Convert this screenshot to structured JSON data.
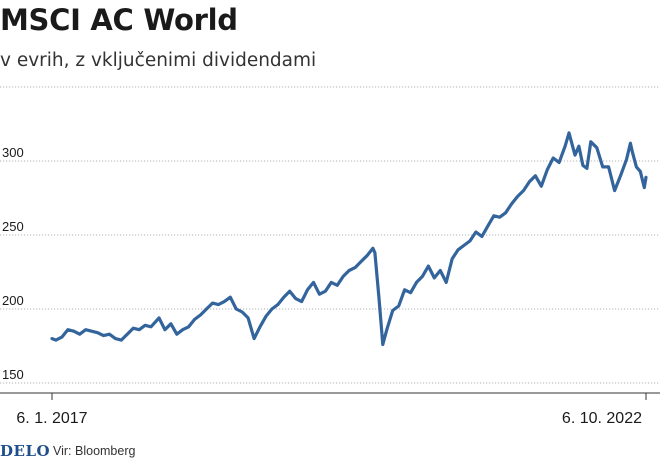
{
  "header": {
    "title": "MSCI AC World",
    "subtitle": "v evrih, z vključenimi dividendami"
  },
  "footer": {
    "logo": "DELO",
    "source": "Vir: Bloomberg"
  },
  "colors": {
    "line": "#33659c",
    "grid": "#9a9a9a",
    "text": "#1a1a1a",
    "logo": "#1f4e8c"
  },
  "chart_data": {
    "type": "line",
    "title": "MSCI AC World",
    "subtitle": "v evrih, z vključenimi dividendami",
    "ylim": [
      150,
      330
    ],
    "yticks": [
      150,
      200,
      250,
      300
    ],
    "ytick_labels": [
      "150",
      "200",
      "250",
      "300"
    ],
    "x_tick_labels": [
      "6. 1. 2017",
      "6. 10. 2022"
    ],
    "xlim": [
      "2017-01-06",
      "2022-10-06"
    ],
    "grid": "horizontal",
    "series": [
      {
        "values": [
          [
            "2017-01-06",
            180
          ],
          [
            "2017-01-20",
            179
          ],
          [
            "2017-02-10",
            181
          ],
          [
            "2017-03-03",
            186
          ],
          [
            "2017-03-24",
            185
          ],
          [
            "2017-04-14",
            183
          ],
          [
            "2017-05-05",
            186
          ],
          [
            "2017-05-26",
            185
          ],
          [
            "2017-06-16",
            184
          ],
          [
            "2017-07-07",
            182
          ],
          [
            "2017-07-28",
            183
          ],
          [
            "2017-08-18",
            180
          ],
          [
            "2017-09-08",
            179
          ],
          [
            "2017-09-29",
            183
          ],
          [
            "2017-10-20",
            187
          ],
          [
            "2017-11-10",
            186
          ],
          [
            "2017-12-01",
            189
          ],
          [
            "2017-12-22",
            188
          ],
          [
            "2018-01-19",
            194
          ],
          [
            "2018-02-09",
            186
          ],
          [
            "2018-03-02",
            190
          ],
          [
            "2018-03-23",
            183
          ],
          [
            "2018-04-13",
            186
          ],
          [
            "2018-05-04",
            188
          ],
          [
            "2018-05-25",
            193
          ],
          [
            "2018-06-15",
            196
          ],
          [
            "2018-07-06",
            200
          ],
          [
            "2018-07-27",
            204
          ],
          [
            "2018-08-17",
            203
          ],
          [
            "2018-09-07",
            205
          ],
          [
            "2018-09-28",
            208
          ],
          [
            "2018-10-19",
            200
          ],
          [
            "2018-11-09",
            198
          ],
          [
            "2018-11-30",
            194
          ],
          [
            "2018-12-21",
            180
          ],
          [
            "2019-01-11",
            188
          ],
          [
            "2019-02-01",
            195
          ],
          [
            "2019-02-22",
            200
          ],
          [
            "2019-03-15",
            203
          ],
          [
            "2019-04-05",
            208
          ],
          [
            "2019-04-26",
            212
          ],
          [
            "2019-05-17",
            207
          ],
          [
            "2019-06-07",
            205
          ],
          [
            "2019-06-28",
            213
          ],
          [
            "2019-07-19",
            218
          ],
          [
            "2019-08-09",
            210
          ],
          [
            "2019-08-30",
            212
          ],
          [
            "2019-09-20",
            218
          ],
          [
            "2019-10-11",
            216
          ],
          [
            "2019-11-01",
            222
          ],
          [
            "2019-11-22",
            226
          ],
          [
            "2019-12-13",
            228
          ],
          [
            "2020-01-03",
            232
          ],
          [
            "2020-01-24",
            236
          ],
          [
            "2020-02-14",
            241
          ],
          [
            "2020-02-21",
            238
          ],
          [
            "2020-03-06",
            208
          ],
          [
            "2020-03-20",
            176
          ],
          [
            "2020-04-03",
            186
          ],
          [
            "2020-04-24",
            199
          ],
          [
            "2020-05-15",
            202
          ],
          [
            "2020-06-05",
            213
          ],
          [
            "2020-06-26",
            211
          ],
          [
            "2020-07-17",
            218
          ],
          [
            "2020-08-07",
            222
          ],
          [
            "2020-08-28",
            229
          ],
          [
            "2020-09-18",
            221
          ],
          [
            "2020-10-09",
            226
          ],
          [
            "2020-10-30",
            218
          ],
          [
            "2020-11-20",
            234
          ],
          [
            "2020-12-11",
            240
          ],
          [
            "2021-01-01",
            243
          ],
          [
            "2021-01-22",
            246
          ],
          [
            "2021-02-12",
            252
          ],
          [
            "2021-03-05",
            249
          ],
          [
            "2021-03-26",
            256
          ],
          [
            "2021-04-16",
            263
          ],
          [
            "2021-05-07",
            262
          ],
          [
            "2021-05-28",
            265
          ],
          [
            "2021-06-18",
            271
          ],
          [
            "2021-07-09",
            276
          ],
          [
            "2021-07-30",
            280
          ],
          [
            "2021-08-20",
            286
          ],
          [
            "2021-09-10",
            290
          ],
          [
            "2021-10-01",
            283
          ],
          [
            "2021-10-22",
            294
          ],
          [
            "2021-11-12",
            302
          ],
          [
            "2021-12-03",
            299
          ],
          [
            "2021-12-24",
            310
          ],
          [
            "2022-01-07",
            319
          ],
          [
            "2022-01-28",
            304
          ],
          [
            "2022-02-11",
            310
          ],
          [
            "2022-02-25",
            297
          ],
          [
            "2022-03-11",
            295
          ],
          [
            "2022-03-25",
            313
          ],
          [
            "2022-04-15",
            309
          ],
          [
            "2022-05-06",
            296
          ],
          [
            "2022-05-27",
            296
          ],
          [
            "2022-06-17",
            280
          ],
          [
            "2022-07-08",
            290
          ],
          [
            "2022-07-29",
            301
          ],
          [
            "2022-08-12",
            312
          ],
          [
            "2022-08-19",
            306
          ],
          [
            "2022-09-02",
            296
          ],
          [
            "2022-09-16",
            293
          ],
          [
            "2022-09-30",
            282
          ],
          [
            "2022-10-06",
            289
          ]
        ]
      }
    ]
  }
}
